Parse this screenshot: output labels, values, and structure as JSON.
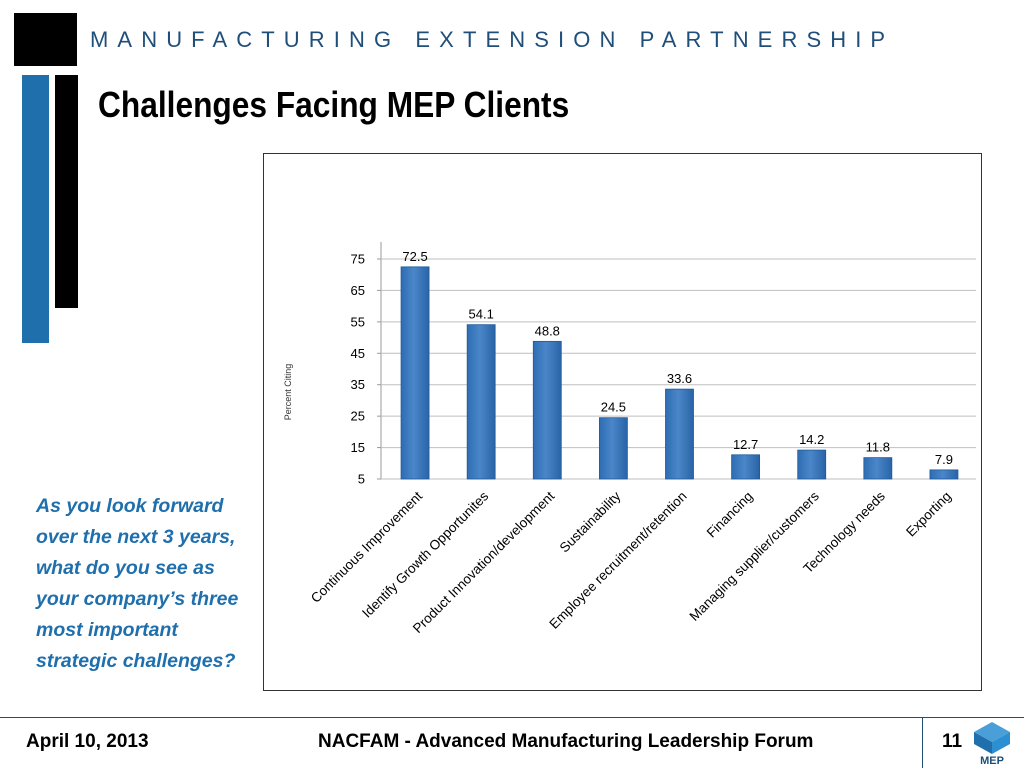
{
  "header": {
    "organization": "MANUFACTURING EXTENSION PARTNERSHIP",
    "title": "Challenges Facing MEP Clients"
  },
  "question": "As you look forward over the next 3 years, what do you see as your company’s three most important strategic challenges?",
  "footer": {
    "date": "April 10, 2013",
    "event": "NACFAM - Advanced Manufacturing Leadership Forum",
    "page_number": "11",
    "logo_text": "MEP"
  },
  "colors": {
    "brand_blue": "#1f6fad",
    "bar_blue": "#4a86c8",
    "footer_line": "#1f4e79"
  },
  "chart_data": {
    "type": "bar",
    "title": "",
    "xlabel": "",
    "ylabel": "Percent Citing",
    "categories": [
      "Continuous Improvement",
      "Identify Growth Opportunites",
      "Product Innovation/development",
      "Sustainability",
      "Employee recruitment/retention",
      "Financing",
      "Managing supplier/customers",
      "Technology needs",
      "Exporting"
    ],
    "values": [
      72.5,
      54.1,
      48.8,
      24.5,
      33.6,
      12.7,
      14.2,
      11.8,
      7.9
    ],
    "data_labels": [
      "72.5",
      "54.1",
      "48.8",
      "24.5",
      "33.6",
      "12.7",
      "14.2",
      "11.8",
      "7.9"
    ],
    "yticks": [
      5,
      15,
      25,
      35,
      45,
      55,
      65,
      75
    ],
    "ylim": [
      5,
      75
    ],
    "grid": true,
    "legend": false
  }
}
